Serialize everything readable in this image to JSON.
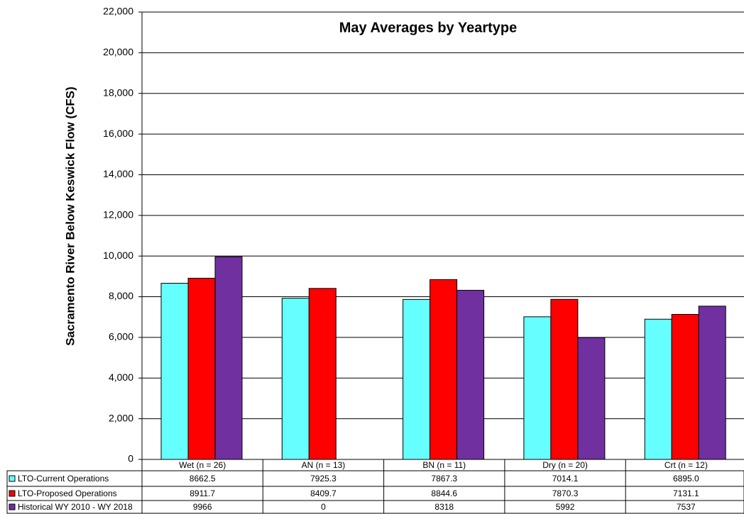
{
  "chart_data": {
    "type": "bar",
    "title": "May Averages by Yeartype",
    "ylabel": "Sacramento River Below Keswick Flow (CFS)",
    "categories": [
      "Wet (n = 26)",
      "AN  (n = 13)",
      "BN  (n = 11)",
      "Dry (n = 20)",
      "Crt (n = 12)"
    ],
    "series": [
      {
        "name": "LTO-Current Operations",
        "color": "#66ffff",
        "values": [
          8662.5,
          7925.3,
          7867.3,
          7014.1,
          6895.0
        ],
        "value_labels": [
          "8662.5",
          "7925.3",
          "7867.3",
          "7014.1",
          "6895.0"
        ]
      },
      {
        "name": "LTO-Proposed Operations",
        "color": "#ff0000",
        "values": [
          8911.7,
          8409.7,
          8844.6,
          7870.3,
          7131.1
        ]
      },
      {
        "name": "Historical WY 2010 - WY 2018",
        "color": "#7030a0",
        "values": [
          9966,
          0,
          8318,
          5992,
          7537
        ]
      }
    ],
    "ylim": [
      0,
      22000
    ],
    "yticks": [
      {
        "value": 0,
        "label": "0"
      },
      {
        "value": 2000,
        "label": "2,000"
      },
      {
        "value": 4000,
        "label": "4,000"
      },
      {
        "value": 6000,
        "label": "6,000"
      },
      {
        "value": 8000,
        "label": "8,000"
      },
      {
        "value": 10000,
        "label": "10,000"
      },
      {
        "value": 12000,
        "label": "12,000"
      },
      {
        "value": 14000,
        "label": "14,000"
      },
      {
        "value": 16000,
        "label": "16,000"
      },
      {
        "value": 18000,
        "label": "18,000"
      },
      {
        "value": 20000,
        "label": "20,000"
      },
      {
        "value": 22000,
        "label": "22,000"
      }
    ],
    "grid": true
  }
}
